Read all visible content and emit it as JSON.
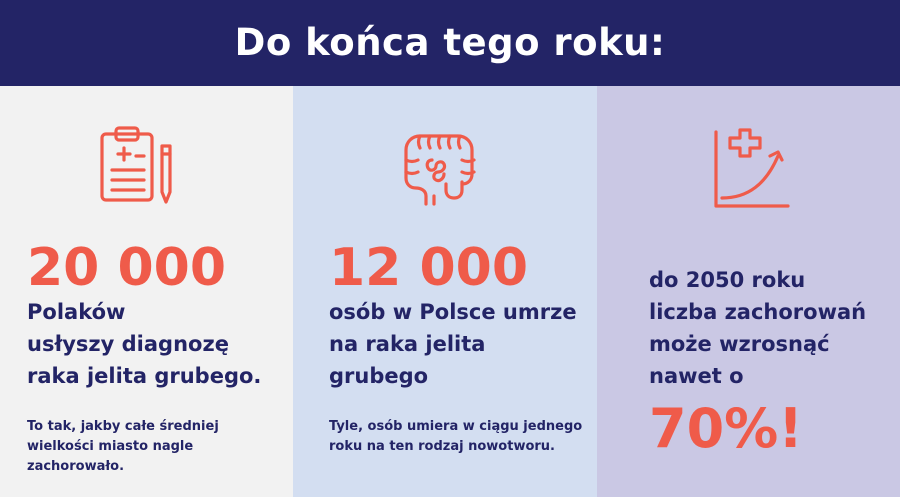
{
  "header": {
    "title": "Do końca tego roku:"
  },
  "columns": [
    {
      "icon": "clipboard-medical-icon",
      "big_number": "20 000",
      "lead_lines": [
        "Polaków",
        "usłyszy diagnozę",
        "raka jelita grubego."
      ],
      "note_lines": [
        "To tak, jakby całe średniej",
        "wielkości miasto nagle",
        "zachorowało."
      ]
    },
    {
      "icon": "intestine-icon",
      "big_number": "12 000",
      "lead_lines": [
        "osób w Polsce umrze",
        "na raka jelita",
        "grubego"
      ],
      "note_lines": [
        "Tyle, osób umiera w ciągu jednego",
        "roku na ten rodzaj nowotworu."
      ]
    },
    {
      "icon": "growth-chart-medical-icon",
      "lead_lines": [
        "do 2050 roku",
        "liczba zachorowań",
        "może wzrosnąć",
        "nawet o"
      ],
      "big_number": "70%!"
    }
  ],
  "colors": {
    "header_bg": "#232466",
    "accent": "#ef5b4a",
    "text_dark": "#232466",
    "col1_bg": "#f2f2f2",
    "col2_bg": "#d3def1",
    "col3_bg": "#cac8e4"
  }
}
